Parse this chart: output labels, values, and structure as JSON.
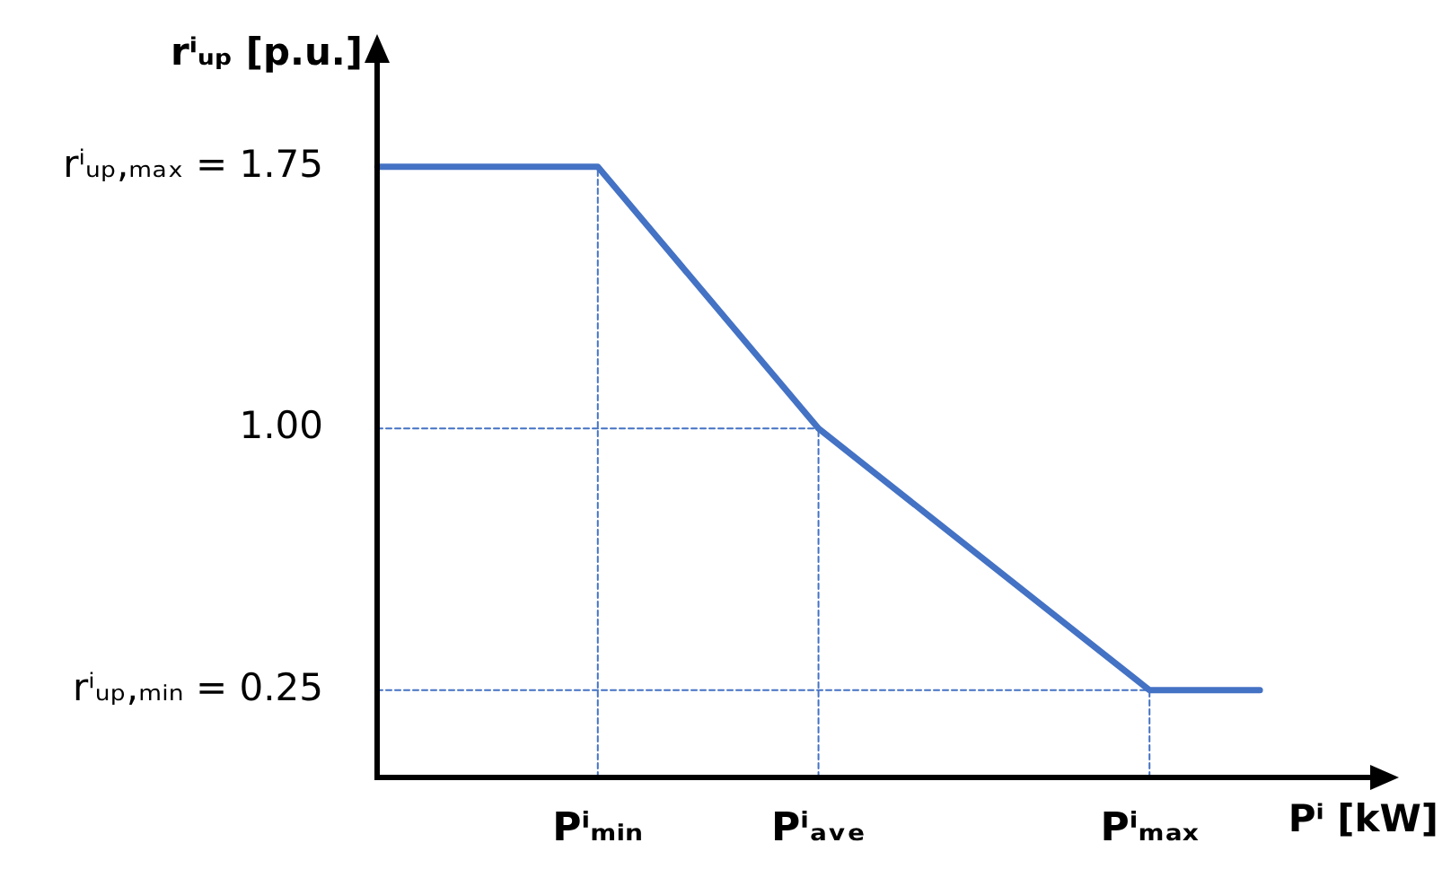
{
  "chart_data": {
    "type": "line",
    "xlabel": "Pⁱ [kW]",
    "ylabel": "rⁱᵤₚ [p.u.]",
    "categories": [
      null,
      null,
      "Pⁱₘᵢₙ",
      null,
      "Pⁱₐᵥₑ",
      null,
      null,
      "Pⁱₘₐₓ",
      null,
      null
    ],
    "series": [
      {
        "color": "#4472c4",
        "values": [
          1.75,
          1.75,
          1.75,
          1.375,
          1.0,
          0.75,
          0.5,
          0.25,
          0.25,
          null
        ]
      },
      {
        "color": "#4472c4",
        "line_style": "dashed",
        "values": [
          1.0,
          1.0,
          1.0,
          1.0,
          1.0,
          null,
          null,
          null,
          null,
          null
        ]
      },
      {
        "color": "#4472c4",
        "line_style": "dashed",
        "values": [
          0.25,
          0.25,
          0.25,
          0.25,
          0.25,
          0.25,
          0.25,
          0.25,
          null,
          null
        ]
      },
      {
        "color": "#4472c4",
        "line_style": "dashed",
        "x": [
          "Pⁱₘᵢₙ",
          "Pⁱₘᵢₙ"
        ],
        "values": [
          0,
          1.75
        ]
      },
      {
        "color": "#4472c4",
        "line_style": "dashed",
        "x": [
          "Pⁱₐᵥₑ",
          "Pⁱₐᵥₑ"
        ],
        "values": [
          0,
          1.0
        ]
      },
      {
        "color": "#4472c4",
        "line_style": "dashed",
        "x": [
          "Pⁱₘₐₓ",
          "Pⁱₘₐₓ"
        ],
        "values": [
          0,
          0.25
        ]
      }
    ],
    "ylim": [
      0,
      2.05
    ],
    "yticks": [
      {
        "value": 0.25,
        "label": "rⁱᵤₚ,ₘᵢₙ = 0.25"
      },
      {
        "value": 1.0,
        "label": "1.00"
      },
      {
        "value": 1.75,
        "label": "rⁱᵤₚ,ₘₐₓ = 1.75"
      }
    ],
    "legend": false,
    "marker": "none",
    "line_style": "solid"
  }
}
